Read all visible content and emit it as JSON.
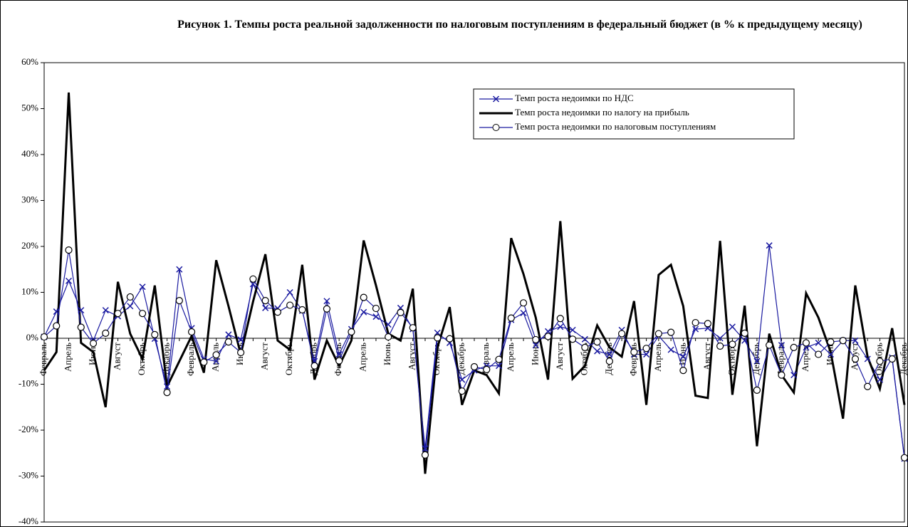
{
  "chart_data": {
    "type": "line",
    "title": "Рисунок 1. Темпы роста реальной задолженности по налоговым поступлениям в федеральный бюджет (в % к предыдущему месяцу)",
    "categories": [
      "Февраль",
      null,
      "Апрель",
      null,
      "Июнь",
      null,
      "Август",
      null,
      "Октябрь",
      null,
      "Декабрь",
      null,
      "Февраль",
      null,
      "Апрель",
      null,
      "Июнь",
      null,
      "Август",
      null,
      "Октябрь",
      null,
      "Декабрь",
      null,
      "Февраль",
      null,
      "Апрель",
      null,
      "Июнь",
      null,
      "Август",
      null,
      "Октябрь",
      null,
      "Декабрь",
      null,
      "Февраль",
      null,
      "Апрель",
      null,
      "Июнь",
      null,
      "Август",
      null,
      "Октябрь",
      null,
      "Декабрь",
      null,
      "Февраль",
      null,
      "Апрель",
      null,
      "Июнь",
      null,
      "Август",
      null,
      "Октябрь",
      null,
      "Декабрь",
      null,
      "Февраль",
      null,
      "Апрель",
      null,
      "Июнь",
      null,
      "Август",
      null,
      "Октябрь",
      null,
      "Декабрь"
    ],
    "series": [
      {
        "name": "Темп роста недоимки по НДС",
        "color": "#1a1aa0",
        "marker": "x",
        "line_width": 1.2,
        "values": [
          0.3,
          5.8,
          12.5,
          6.1,
          -0.5,
          6.1,
          4.8,
          7.0,
          11.2,
          -0.1,
          -10.5,
          15.0,
          2.2,
          -4.5,
          -5.0,
          0.8,
          -0.3,
          11.8,
          6.6,
          6.5,
          10.0,
          6.0,
          -5.0,
          8.1,
          -3.5,
          2.0,
          5.7,
          4.7,
          3.0,
          6.6,
          2.0,
          -24.0,
          1.2,
          -1.0,
          -9.0,
          -7.0,
          -6.0,
          -6.0,
          4.0,
          5.5,
          -1.5,
          1.5,
          2.5,
          1.8,
          -0.2,
          -2.8,
          -3.5,
          1.8,
          -3.5,
          -3.5,
          0.5,
          -2.5,
          -4.0,
          2.0,
          2.2,
          0.0,
          2.5,
          -0.5,
          -5.0,
          20.2,
          -1.5,
          -8.0,
          -2.0,
          -1.0,
          -3.5,
          -0.5,
          -0.5,
          -4.5,
          -9.0,
          -4.2,
          -26.2
        ]
      },
      {
        "name": "Темп роста недоимки по налогу на прибыль",
        "color": "#000000",
        "marker": "none",
        "line_width": 3,
        "values": [
          -7,
          -3,
          53.5,
          -1,
          -3,
          -15,
          12.3,
          1,
          -4.5,
          11.5,
          -10.5,
          -5,
          0.5,
          -7.5,
          17,
          7,
          -3.5,
          8,
          18.3,
          -0.5,
          -2.5,
          16,
          -9,
          -0.5,
          -6,
          -0.5,
          21.3,
          11.5,
          1,
          -0.5,
          10.8,
          -29.5,
          -2,
          6.8,
          -14.5,
          -7,
          -8,
          -12,
          21.8,
          14,
          4.5,
          -9,
          25.5,
          -8.8,
          -6,
          2.8,
          -2,
          -4,
          8.1,
          -14.5,
          13.8,
          16,
          7,
          -12.5,
          -13,
          21.2,
          -12.3,
          7.1,
          -23.5,
          1,
          -8,
          -11.8,
          9.8,
          4.5,
          -3,
          -17.5,
          11.5,
          -4,
          -11,
          2.2,
          -14.5
        ]
      },
      {
        "name": "Темп роста недоимки по налоговым поступлениям",
        "color": "#1a1aa0",
        "marker": "circle",
        "line_width": 1.2,
        "values": [
          0.3,
          2.7,
          19.2,
          2.4,
          -1.1,
          1.1,
          5.4,
          9.0,
          5.4,
          0.8,
          -11.8,
          8.2,
          1.4,
          -5.2,
          -3.6,
          -0.8,
          -3.1,
          12.9,
          8.2,
          5.7,
          7.2,
          6.2,
          -6.0,
          6.4,
          -4.9,
          1.4,
          8.9,
          6.5,
          0.3,
          5.6,
          2.3,
          -25.4,
          0.1,
          -0.1,
          -11.5,
          -6.2,
          -6.8,
          -4.6,
          4.4,
          7.7,
          -0.3,
          0.4,
          4.3,
          -0.2,
          -2.0,
          -0.8,
          -5.0,
          1.0,
          -3.0,
          -2.2,
          1.0,
          1.3,
          -7.0,
          3.4,
          3.2,
          -1.7,
          -1.3,
          1.1,
          -11.3,
          -1.5,
          -8.0,
          -2.0,
          -1.0,
          -3.5,
          -0.8,
          -0.5,
          -4.5,
          -10.5,
          -5.0,
          -4.5,
          -26.0
        ]
      }
    ],
    "ylim": [
      -40,
      60
    ],
    "yticks": [
      {
        "value": -40,
        "label": "-40%"
      },
      {
        "value": -30,
        "label": "-30%"
      },
      {
        "value": -20,
        "label": "-20%"
      },
      {
        "value": -10,
        "label": "-10%"
      },
      {
        "value": 0,
        "label": "0%"
      },
      {
        "value": 10,
        "label": "10%"
      },
      {
        "value": 20,
        "label": "20%"
      },
      {
        "value": 30,
        "label": "30%"
      },
      {
        "value": 40,
        "label": "40%"
      },
      {
        "value": 50,
        "label": "50%"
      },
      {
        "value": 60,
        "label": "60%"
      }
    ],
    "grid": false,
    "legend": "upper-right"
  }
}
